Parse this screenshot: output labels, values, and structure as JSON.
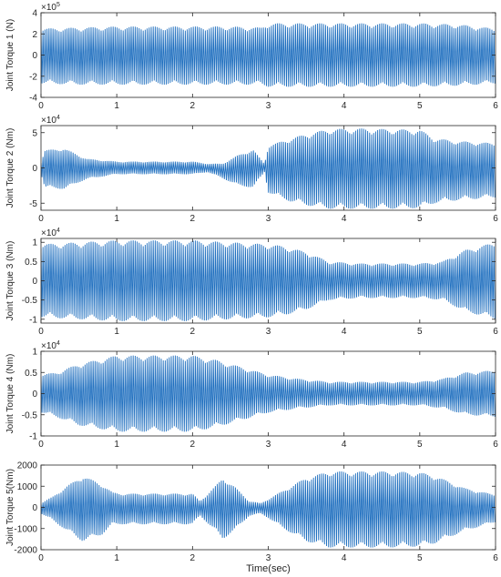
{
  "figure": {
    "xlabel": "Time(sec)",
    "series_color": "#1f6fbf"
  },
  "chart_data": [
    {
      "type": "line",
      "ylabel": "Joint Torque 1 (N)",
      "exponent": "×10",
      "exponent_power": "5",
      "xlim": [
        0,
        6
      ],
      "ylim": [
        -4,
        4
      ],
      "xticks": [
        "0",
        "1",
        "2",
        "3",
        "4",
        "5",
        "6"
      ],
      "yticks": [
        "-4",
        "-2",
        "0",
        "2",
        "4"
      ],
      "envelope": {
        "time": [
          0,
          0.5,
          1,
          1.5,
          2,
          2.5,
          2.9,
          3.0,
          3.5,
          4,
          4.5,
          5,
          5.5,
          6
        ],
        "upper": [
          2.5,
          2.6,
          2.7,
          2.7,
          2.7,
          2.7,
          2.6,
          3.0,
          3.0,
          3.0,
          3.0,
          3.0,
          2.9,
          2.5
        ],
        "lower": [
          -2.7,
          -2.8,
          -2.8,
          -2.8,
          -2.8,
          -2.8,
          -2.8,
          -3.0,
          -3.0,
          -3.0,
          -3.0,
          -3.0,
          -2.9,
          -2.7
        ]
      }
    },
    {
      "type": "line",
      "ylabel": "Joint Torque 2 (Nm)",
      "exponent": "×10",
      "exponent_power": "4",
      "xlim": [
        0,
        6
      ],
      "ylim": [
        -6,
        6
      ],
      "xticks": [
        "0",
        "1",
        "2",
        "3",
        "4",
        "5",
        "6"
      ],
      "yticks": [
        "-5",
        "0",
        "5"
      ],
      "envelope": {
        "time": [
          0,
          0.05,
          0.3,
          0.6,
          1,
          1.5,
          2,
          2.2,
          2.4,
          2.6,
          2.8,
          2.95,
          3.0,
          3.1,
          3.3,
          3.5,
          3.8,
          4.2,
          4.6,
          5.0,
          5.2,
          5.5,
          6
        ],
        "upper": [
          0.8,
          2.5,
          2.8,
          1.3,
          0.9,
          0.9,
          0.9,
          0.6,
          0.6,
          1.8,
          2.6,
          0.6,
          3.2,
          3.5,
          4.2,
          4.8,
          5.5,
          5.6,
          5.5,
          5.4,
          4.2,
          3.8,
          3.5
        ],
        "lower": [
          -0.8,
          -2.8,
          -3.0,
          -1.6,
          -0.9,
          -0.9,
          -0.9,
          -0.6,
          -1.5,
          -2.5,
          -2.8,
          -0.6,
          -3.5,
          -4.0,
          -4.8,
          -5.3,
          -5.8,
          -5.8,
          -5.8,
          -5.7,
          -5.0,
          -4.6,
          -4.2
        ]
      }
    },
    {
      "type": "line",
      "ylabel": "Joint Torque 3 (Nm)",
      "exponent": "×10",
      "exponent_power": "4",
      "xlim": [
        0,
        6
      ],
      "ylim": [
        -1.1,
        1.1
      ],
      "xticks": [
        "0",
        "1",
        "2",
        "3",
        "4",
        "5",
        "6"
      ],
      "yticks": [
        "-1",
        "-0.5",
        "0",
        "0.5",
        "1"
      ],
      "envelope": {
        "time": [
          0,
          0.5,
          1,
          1.5,
          2,
          2.5,
          3,
          3.2,
          3.5,
          3.8,
          4.2,
          4.6,
          5,
          5.3,
          5.6,
          6
        ],
        "upper": [
          0.95,
          1.0,
          1.05,
          1.05,
          1.05,
          1.0,
          0.95,
          0.9,
          0.75,
          0.5,
          0.45,
          0.45,
          0.45,
          0.5,
          0.8,
          1.0
        ],
        "lower": [
          -0.95,
          -1.0,
          -1.05,
          -1.05,
          -1.05,
          -1.0,
          -0.95,
          -0.9,
          -0.75,
          -0.5,
          -0.45,
          -0.45,
          -0.45,
          -0.5,
          -0.8,
          -1.0
        ]
      }
    },
    {
      "type": "line",
      "ylabel": "Joint Torque 4 (Nm)",
      "exponent": "×10",
      "exponent_power": "4",
      "xlim": [
        0,
        6
      ],
      "ylim": [
        -1,
        1
      ],
      "xticks": [
        "0",
        "1",
        "2",
        "3",
        "4",
        "5",
        "6"
      ],
      "yticks": [
        "-1",
        "-0.5",
        "0",
        "0.5",
        "1"
      ],
      "envelope": {
        "time": [
          0,
          0.2,
          0.5,
          1,
          1.5,
          2,
          2.3,
          2.6,
          3,
          3.4,
          3.8,
          4.2,
          4.6,
          5,
          5.3,
          5.6,
          6
        ],
        "upper": [
          0.45,
          0.5,
          0.7,
          0.9,
          0.9,
          0.9,
          0.8,
          0.65,
          0.45,
          0.35,
          0.28,
          0.28,
          0.28,
          0.28,
          0.35,
          0.5,
          0.55
        ],
        "lower": [
          -0.45,
          -0.55,
          -0.75,
          -0.9,
          -0.9,
          -0.9,
          -0.8,
          -0.65,
          -0.45,
          -0.35,
          -0.28,
          -0.28,
          -0.28,
          -0.28,
          -0.35,
          -0.5,
          -0.55
        ]
      }
    },
    {
      "type": "line",
      "ylabel": "Joint Torque 5(Nm)",
      "exponent": "",
      "exponent_power": "",
      "xlim": [
        0,
        6
      ],
      "ylim": [
        -2000,
        2000
      ],
      "xticks": [
        "0",
        "1",
        "2",
        "3",
        "4",
        "5",
        "6"
      ],
      "yticks": [
        "-2000",
        "-1000",
        "0",
        "1000",
        "2000"
      ],
      "envelope": {
        "time": [
          0,
          0.15,
          0.3,
          0.55,
          0.8,
          0.95,
          1.1,
          1.5,
          2,
          2.1,
          2.3,
          2.4,
          2.55,
          2.75,
          2.9,
          3.0,
          3.2,
          3.5,
          3.8,
          4.2,
          4.6,
          5.0,
          5.2,
          5.4,
          5.6,
          6
        ],
        "upper": [
          200,
          500,
          900,
          1500,
          1100,
          700,
          650,
          650,
          650,
          300,
          1000,
          1400,
          1000,
          300,
          200,
          400,
          800,
          1400,
          1700,
          1700,
          1700,
          1650,
          1500,
          1200,
          900,
          600
        ],
        "lower": [
          -300,
          -600,
          -1000,
          -1600,
          -1300,
          -800,
          -800,
          -800,
          -800,
          -400,
          -1100,
          -1500,
          -1100,
          -400,
          -300,
          -500,
          -1000,
          -1600,
          -1900,
          -1900,
          -1900,
          -1850,
          -1700,
          -1400,
          -1100,
          -700
        ]
      }
    }
  ]
}
